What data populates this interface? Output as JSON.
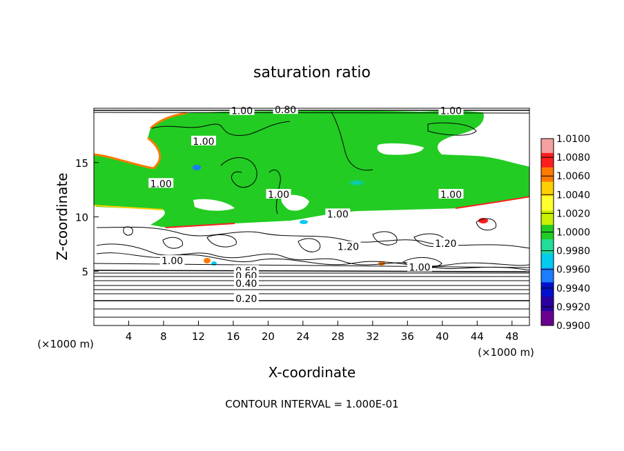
{
  "chart_data": {
    "type": "heatmap",
    "title": "saturation ratio",
    "xlabel": "X-coordinate",
    "ylabel": "Z-coordinate",
    "x_unit": "(×1000 m)",
    "z_unit": "(×1000 m)",
    "footer": "CONTOUR INTERVAL = 1.000E-01",
    "xlim": [
      0,
      50
    ],
    "ylim": [
      0,
      20
    ],
    "x_ticks": [
      4,
      8,
      12,
      16,
      20,
      24,
      28,
      32,
      36,
      40,
      44,
      48
    ],
    "y_ticks": [
      5,
      10,
      15
    ],
    "colorbar": {
      "levels": [
        "1.0100",
        "1.0080",
        "1.0060",
        "1.0040",
        "1.0020",
        "1.0000",
        "0.9980",
        "0.9960",
        "0.9940",
        "0.9920",
        "0.9900"
      ],
      "colors": [
        "#f4a0a0",
        "#ff1e1e",
        "#ff7a00",
        "#ffd000",
        "#ffff30",
        "#c8f000",
        "#22cc22",
        "#22dd99",
        "#00ccee",
        "#1a7cff",
        "#0010cc",
        "#2a00a0",
        "#6a0090"
      ]
    },
    "contour_labels": [
      {
        "text": "1.00",
        "x": 17.0,
        "z": 19.7
      },
      {
        "text": "0.80",
        "x": 22.0,
        "z": 19.8
      },
      {
        "text": "1.00",
        "x": 41.0,
        "z": 19.7
      },
      {
        "text": "1.00",
        "x": 12.6,
        "z": 16.9
      },
      {
        "text": "1.00",
        "x": 7.7,
        "z": 13.0
      },
      {
        "text": "1.00",
        "x": 21.2,
        "z": 12.0
      },
      {
        "text": "1.00",
        "x": 41.0,
        "z": 12.0
      },
      {
        "text": "1.00",
        "x": 28.0,
        "z": 10.2
      },
      {
        "text": "1.20",
        "x": 29.2,
        "z": 7.2
      },
      {
        "text": "1.20",
        "x": 40.4,
        "z": 7.5
      },
      {
        "text": "1.00",
        "x": 9.0,
        "z": 5.9
      },
      {
        "text": "1.00",
        "x": 37.4,
        "z": 5.3
      },
      {
        "text": "0.60",
        "x": 17.5,
        "z": 5.0
      },
      {
        "text": "0.60",
        "x": 17.5,
        "z": 4.5
      },
      {
        "text": "0.40",
        "x": 17.5,
        "z": 3.8
      },
      {
        "text": "0.20",
        "x": 17.5,
        "z": 2.4
      }
    ]
  }
}
